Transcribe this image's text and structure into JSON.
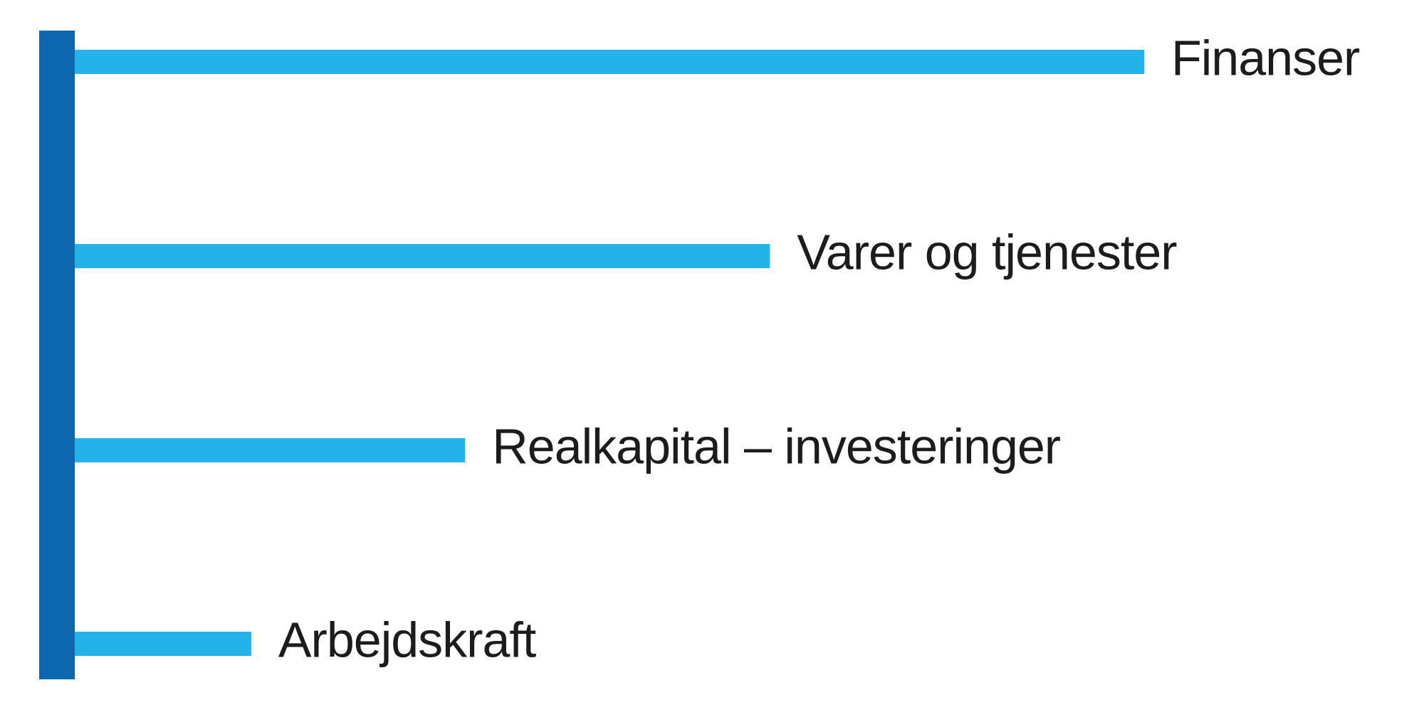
{
  "chart_data": {
    "type": "bar",
    "orientation": "horizontal",
    "categories": [
      "Finanser",
      "Varer og tjenester",
      "Realkapital – investeringer",
      "Arbejdskraft"
    ],
    "values": [
      100,
      65,
      36.5,
      16.5
    ],
    "title": "",
    "xlabel": "",
    "ylabel": "",
    "xlim": [
      0,
      100
    ],
    "grid": false,
    "legend": "none",
    "labels_position": "end-of-bar",
    "colors": {
      "bar": "#23b3e8",
      "axis": "#0d67ae",
      "label": "#1c1c1c"
    }
  }
}
